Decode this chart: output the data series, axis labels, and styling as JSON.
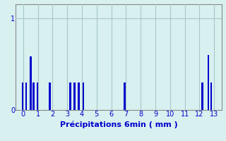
{
  "title": "",
  "xlabel": "Précipitations 6min ( mm )",
  "ylabel": "",
  "background_color": "#d8f0f0",
  "bar_color": "#0000cd",
  "grid_color": "#a8c8c8",
  "xlim": [
    -0.5,
    13.5
  ],
  "ylim": [
    0,
    1.15
  ],
  "yticks": [
    0,
    1
  ],
  "xticks": [
    0,
    1,
    2,
    3,
    4,
    5,
    6,
    7,
    8,
    9,
    10,
    11,
    12,
    13
  ],
  "bar_positions": [
    0.0,
    0.2,
    0.5,
    0.7,
    1.0,
    1.8,
    3.2,
    3.5,
    3.8,
    4.1,
    6.9,
    12.2,
    12.6,
    12.8
  ],
  "bar_heights": [
    0.3,
    0.3,
    0.58,
    0.3,
    0.3,
    0.3,
    0.3,
    0.3,
    0.3,
    0.3,
    0.3,
    0.3,
    0.6,
    0.3
  ],
  "bar_width": 0.13,
  "xlabel_fontsize": 8,
  "tick_fontsize": 7,
  "tick_color": "#0000cd",
  "xlabel_color": "#0000cd",
  "spine_color": "#888888"
}
